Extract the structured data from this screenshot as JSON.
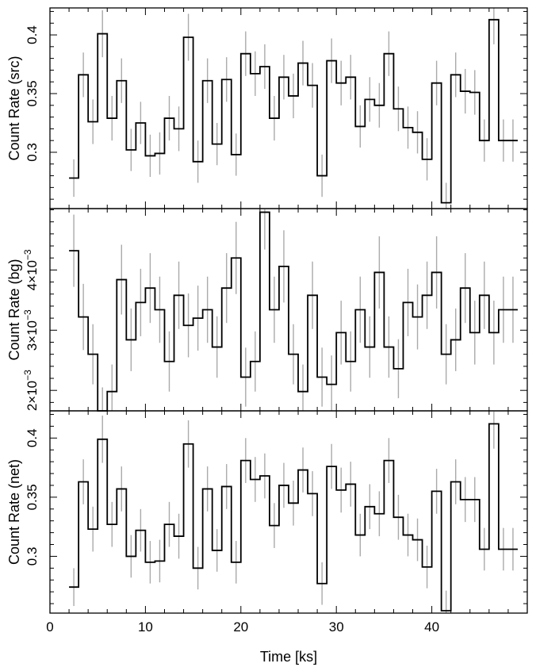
{
  "chart_data": [
    {
      "type": "line",
      "step": true,
      "xlabel": "",
      "ylabel": "Count Rate (src)",
      "xlim": [
        0,
        50
      ],
      "ylim": [
        0.252,
        0.423
      ],
      "yticks": [
        0.3,
        0.35,
        0.4
      ],
      "ytick_labels": [
        "0.3",
        "0.35",
        "0.4"
      ],
      "bin_width": 1.0,
      "x": [
        2.5,
        3.5,
        4.5,
        5.5,
        6.5,
        7.5,
        8.5,
        9.5,
        10.5,
        11.5,
        12.5,
        13.5,
        14.5,
        15.5,
        16.5,
        17.5,
        18.5,
        19.5,
        20.5,
        21.5,
        22.5,
        23.5,
        24.5,
        25.5,
        26.5,
        27.5,
        28.5,
        29.5,
        30.5,
        31.5,
        32.5,
        33.5,
        34.5,
        35.5,
        36.5,
        37.5,
        38.5,
        39.5,
        40.5,
        41.5,
        42.5,
        43.5,
        44.5,
        45.5,
        46.5,
        47.5,
        48.5
      ],
      "y": [
        0.278,
        0.366,
        0.326,
        0.401,
        0.329,
        0.361,
        0.302,
        0.325,
        0.297,
        0.299,
        0.329,
        0.32,
        0.398,
        0.292,
        0.361,
        0.307,
        0.362,
        0.298,
        0.384,
        0.367,
        0.373,
        0.329,
        0.364,
        0.348,
        0.376,
        0.357,
        0.28,
        0.378,
        0.359,
        0.364,
        0.322,
        0.345,
        0.34,
        0.384,
        0.337,
        0.321,
        0.317,
        0.294,
        0.359,
        0.257,
        0.366,
        0.352,
        0.351,
        0.31,
        0.413,
        0.31,
        0.31
      ],
      "err": [
        0.016,
        0.019,
        0.019,
        0.02,
        0.019,
        0.019,
        0.018,
        0.018,
        0.018,
        0.018,
        0.019,
        0.019,
        0.02,
        0.018,
        0.019,
        0.018,
        0.019,
        0.018,
        0.019,
        0.019,
        0.019,
        0.019,
        0.019,
        0.019,
        0.019,
        0.019,
        0.018,
        0.019,
        0.019,
        0.019,
        0.018,
        0.019,
        0.019,
        0.019,
        0.019,
        0.018,
        0.018,
        0.018,
        0.019,
        0.017,
        0.019,
        0.019,
        0.019,
        0.018,
        0.021,
        0.018,
        0.018
      ]
    },
    {
      "type": "line",
      "step": true,
      "xlabel": "",
      "ylabel": "Count Rate (bg)",
      "xlim": [
        0,
        50
      ],
      "ylim": [
        0.00166,
        0.00502
      ],
      "yticks": [
        0.002,
        0.003,
        0.004
      ],
      "ytick_labels": [
        {
          "mantissa": "2×10",
          "exp": "−3"
        },
        {
          "mantissa": "3×10",
          "exp": "−3"
        },
        {
          "mantissa": "4×10",
          "exp": "−3"
        }
      ],
      "bin_width": 1.0,
      "x": [
        2.5,
        3.5,
        4.5,
        5.5,
        6.5,
        7.5,
        8.5,
        9.5,
        10.5,
        11.5,
        12.5,
        13.5,
        14.5,
        15.5,
        16.5,
        17.5,
        18.5,
        19.5,
        20.5,
        21.5,
        22.5,
        23.5,
        24.5,
        25.5,
        26.5,
        27.5,
        28.5,
        29.5,
        30.5,
        31.5,
        32.5,
        33.5,
        34.5,
        35.5,
        36.5,
        37.5,
        38.5,
        39.5,
        40.5,
        41.5,
        42.5,
        43.5,
        44.5,
        45.5,
        46.5,
        47.5,
        48.5
      ],
      "y": [
        0.00432,
        0.00322,
        0.0026,
        0.00165,
        0.00198,
        0.00384,
        0.00284,
        0.00346,
        0.0037,
        0.00334,
        0.00248,
        0.00358,
        0.00308,
        0.0032,
        0.00334,
        0.00272,
        0.0037,
        0.0042,
        0.00222,
        0.00248,
        0.00496,
        0.00334,
        0.00406,
        0.0026,
        0.00198,
        0.00358,
        0.00222,
        0.0021,
        0.00296,
        0.00248,
        0.00334,
        0.00272,
        0.00396,
        0.00272,
        0.00236,
        0.00346,
        0.00322,
        0.00358,
        0.00396,
        0.0026,
        0.00284,
        0.0037,
        0.00296,
        0.00358,
        0.00296,
        0.00334,
        0.00334
      ],
      "err": [
        0.0006,
        0.00055,
        0.0005,
        0.0004,
        0.00045,
        0.00058,
        0.00052,
        0.00056,
        0.00058,
        0.00055,
        0.0005,
        0.00056,
        0.00053,
        0.00054,
        0.00055,
        0.00051,
        0.00058,
        0.0006,
        0.00049,
        0.0005,
        0.00062,
        0.00055,
        0.0006,
        0.0005,
        0.00045,
        0.00056,
        0.00049,
        0.00048,
        0.00053,
        0.0005,
        0.00055,
        0.00051,
        0.0006,
        0.00051,
        0.00049,
        0.00056,
        0.00054,
        0.00056,
        0.0006,
        0.0005,
        0.00052,
        0.00058,
        0.00053,
        0.00056,
        0.00053,
        0.00055,
        0.00055
      ]
    },
    {
      "type": "line",
      "step": true,
      "xlabel": "Time [ks]",
      "ylabel": "Count Rate (net)",
      "xlim": [
        0,
        50
      ],
      "ylim": [
        0.252,
        0.423
      ],
      "xticks": [
        0,
        10,
        20,
        30,
        40
      ],
      "xtick_labels": [
        "0",
        "10",
        "20",
        "30",
        "40"
      ],
      "yticks": [
        0.3,
        0.35,
        0.4
      ],
      "ytick_labels": [
        "0.3",
        "0.35",
        "0.4"
      ],
      "bin_width": 1.0,
      "x": [
        2.5,
        3.5,
        4.5,
        5.5,
        6.5,
        7.5,
        8.5,
        9.5,
        10.5,
        11.5,
        12.5,
        13.5,
        14.5,
        15.5,
        16.5,
        17.5,
        18.5,
        19.5,
        20.5,
        21.5,
        22.5,
        23.5,
        24.5,
        25.5,
        26.5,
        27.5,
        28.5,
        29.5,
        30.5,
        31.5,
        32.5,
        33.5,
        34.5,
        35.5,
        36.5,
        37.5,
        38.5,
        39.5,
        40.5,
        41.5,
        42.5,
        43.5,
        44.5,
        45.5,
        46.5,
        47.5,
        48.5
      ],
      "y": [
        0.274,
        0.363,
        0.323,
        0.399,
        0.327,
        0.357,
        0.3,
        0.322,
        0.295,
        0.296,
        0.327,
        0.317,
        0.395,
        0.29,
        0.357,
        0.305,
        0.359,
        0.295,
        0.381,
        0.365,
        0.368,
        0.326,
        0.36,
        0.345,
        0.373,
        0.353,
        0.277,
        0.376,
        0.356,
        0.361,
        0.318,
        0.342,
        0.336,
        0.381,
        0.333,
        0.318,
        0.314,
        0.291,
        0.355,
        0.254,
        0.363,
        0.348,
        0.348,
        0.306,
        0.412,
        0.306,
        0.306
      ],
      "err": [
        0.016,
        0.019,
        0.019,
        0.02,
        0.019,
        0.019,
        0.018,
        0.018,
        0.018,
        0.018,
        0.019,
        0.019,
        0.02,
        0.018,
        0.019,
        0.018,
        0.019,
        0.018,
        0.019,
        0.019,
        0.019,
        0.019,
        0.019,
        0.019,
        0.019,
        0.019,
        0.018,
        0.019,
        0.019,
        0.019,
        0.018,
        0.019,
        0.019,
        0.019,
        0.019,
        0.018,
        0.018,
        0.018,
        0.019,
        0.017,
        0.019,
        0.019,
        0.019,
        0.018,
        0.021,
        0.018,
        0.018
      ]
    }
  ],
  "colors": {
    "line": "#000000",
    "errorbar": "#aaaaaa",
    "frame": "#000000"
  }
}
